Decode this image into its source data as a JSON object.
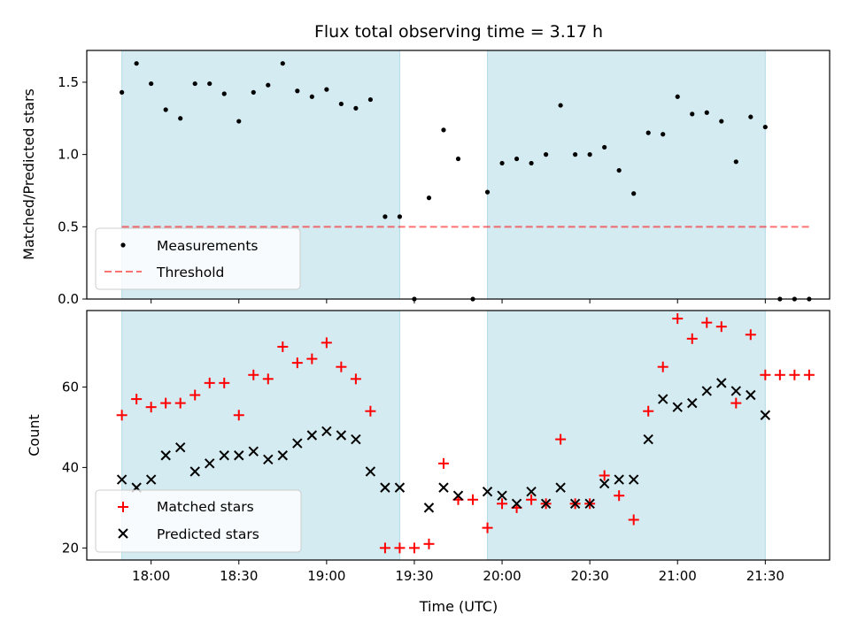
{
  "chart_data": {
    "type": "scatter",
    "title": "Flux total observing time = 3.17 h",
    "xlabel": "Time (UTC)",
    "x_unit": "HH:MM (UTC)",
    "xlim": [
      "17:38",
      "21:52"
    ],
    "xticks": [
      "18:00",
      "18:30",
      "19:00",
      "19:30",
      "20:00",
      "20:30",
      "21:00",
      "21:30"
    ],
    "shaded_intervals": [
      [
        "17:50",
        "19:25"
      ],
      [
        "19:55",
        "21:30"
      ]
    ],
    "shade_color": "#add8e6",
    "x_times": [
      "17:50",
      "17:55",
      "18:00",
      "18:05",
      "18:10",
      "18:15",
      "18:20",
      "18:25",
      "18:30",
      "18:35",
      "18:40",
      "18:45",
      "18:50",
      "18:55",
      "19:00",
      "19:05",
      "19:10",
      "19:15",
      "19:20",
      "19:25",
      "19:30",
      "19:35",
      "19:40",
      "19:45",
      "19:50",
      "19:55",
      "20:00",
      "20:05",
      "20:10",
      "20:15",
      "20:20",
      "20:25",
      "20:30",
      "20:35",
      "20:40",
      "20:45",
      "20:50",
      "20:55",
      "21:00",
      "21:05",
      "21:10",
      "21:15",
      "21:20",
      "21:25",
      "21:30",
      "21:35",
      "21:40",
      "21:45"
    ],
    "panels": [
      {
        "ylabel": "Matched/Predicted stars",
        "ylim": [
          0,
          1.72
        ],
        "yticks": [
          "0.0",
          "0.5",
          "1.0",
          "1.5"
        ],
        "legend_position": "lower-left",
        "threshold": {
          "name": "Threshold",
          "value": 0.5,
          "from": "17:50",
          "to": "21:45",
          "color": "#ff0000",
          "style": "dashed"
        },
        "series": [
          {
            "name": "Measurements",
            "marker": "dot",
            "color": "#000000",
            "values": [
              1.43,
              1.63,
              1.49,
              1.31,
              1.25,
              1.49,
              1.49,
              1.42,
              1.23,
              1.43,
              1.48,
              1.63,
              1.44,
              1.4,
              1.45,
              1.35,
              1.32,
              1.38,
              0.57,
              0.57,
              0.0,
              0.7,
              1.17,
              0.97,
              0.0,
              0.74,
              0.94,
              0.97,
              0.94,
              1.0,
              1.34,
              1.0,
              1.0,
              1.05,
              0.89,
              0.73,
              1.15,
              1.14,
              1.4,
              1.28,
              1.29,
              1.23,
              0.95,
              1.26,
              1.19,
              0.0,
              0.0,
              0.0
            ]
          }
        ]
      },
      {
        "ylabel": "Count",
        "ylim": [
          17,
          79
        ],
        "yticks": [
          "20",
          "40",
          "60"
        ],
        "legend_position": "lower-left",
        "series": [
          {
            "name": "Matched stars",
            "marker": "plus",
            "color": "#ff0000",
            "values": [
              53,
              57,
              55,
              56,
              56,
              58,
              61,
              61,
              53,
              63,
              62,
              70,
              66,
              67,
              71,
              65,
              62,
              54,
              20,
              20,
              20,
              21,
              41,
              32,
              32,
              25,
              31,
              30,
              32,
              31,
              47,
              31,
              31,
              38,
              33,
              27,
              54,
              65,
              77,
              72,
              76,
              75,
              56,
              73,
              63,
              63,
              63,
              63
            ]
          },
          {
            "name": "Predicted stars",
            "marker": "x",
            "color": "#000000",
            "values": [
              37,
              35,
              37,
              43,
              45,
              39,
              41,
              43,
              43,
              44,
              42,
              43,
              46,
              48,
              49,
              48,
              47,
              39,
              35,
              35,
              null,
              30,
              35,
              33,
              null,
              34,
              33,
              31,
              34,
              31,
              35,
              31,
              31,
              36,
              37,
              37,
              47,
              57,
              55,
              56,
              59,
              61,
              59,
              58,
              53,
              null,
              null,
              null
            ]
          }
        ]
      }
    ]
  }
}
